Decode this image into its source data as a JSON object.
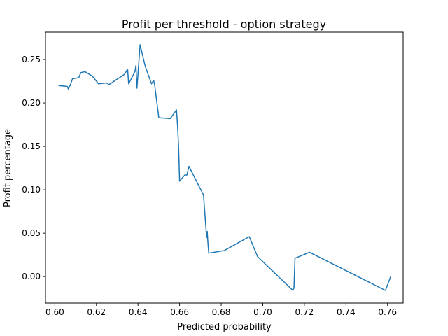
{
  "chart_data": {
    "type": "line",
    "title": "Profit per threshold - option strategy",
    "xlabel": "Predicted probability",
    "ylabel": "Profit percentage",
    "xlim": [
      0.5955,
      0.7675
    ],
    "ylim": [
      -0.0305,
      0.2815
    ],
    "xticks": [
      0.6,
      0.62,
      0.64,
      0.66,
      0.68,
      0.7,
      0.72,
      0.74,
      0.76
    ],
    "xtick_labels": [
      "0.60",
      "0.62",
      "0.64",
      "0.66",
      "0.68",
      "0.70",
      "0.72",
      "0.74",
      "0.76"
    ],
    "yticks": [
      0.0,
      0.05,
      0.1,
      0.15,
      0.2,
      0.25
    ],
    "ytick_labels": [
      "0.00",
      "0.05",
      "0.10",
      "0.15",
      "0.20",
      "0.25"
    ],
    "grid": false,
    "legend": "none",
    "line_color": "#1f77b4",
    "series": [
      {
        "x": [
          0.602,
          0.606,
          0.6065,
          0.6075,
          0.6085,
          0.6115,
          0.6125,
          0.6145,
          0.618,
          0.621,
          0.625,
          0.626,
          0.6335,
          0.635,
          0.6355,
          0.6385,
          0.639,
          0.6395,
          0.641,
          0.6435,
          0.6465,
          0.6475,
          0.648,
          0.65,
          0.6555,
          0.6585,
          0.659,
          0.6595,
          0.66,
          0.6625,
          0.6635,
          0.6645,
          0.6715,
          0.673,
          0.6733,
          0.6735,
          0.674,
          0.6815,
          0.6935,
          0.6975,
          0.7145,
          0.715,
          0.7155,
          0.7225,
          0.759,
          0.7615
        ],
        "y": [
          0.22,
          0.219,
          0.216,
          0.221,
          0.228,
          0.229,
          0.235,
          0.236,
          0.231,
          0.222,
          0.223,
          0.221,
          0.233,
          0.239,
          0.222,
          0.236,
          0.243,
          0.217,
          0.267,
          0.242,
          0.222,
          0.226,
          0.221,
          0.183,
          0.182,
          0.192,
          0.175,
          0.151,
          0.11,
          0.117,
          0.117,
          0.127,
          0.094,
          0.045,
          0.052,
          0.043,
          0.027,
          0.03,
          0.046,
          0.023,
          -0.016,
          -0.013,
          0.021,
          0.028,
          -0.016,
          0.0
        ]
      }
    ]
  }
}
